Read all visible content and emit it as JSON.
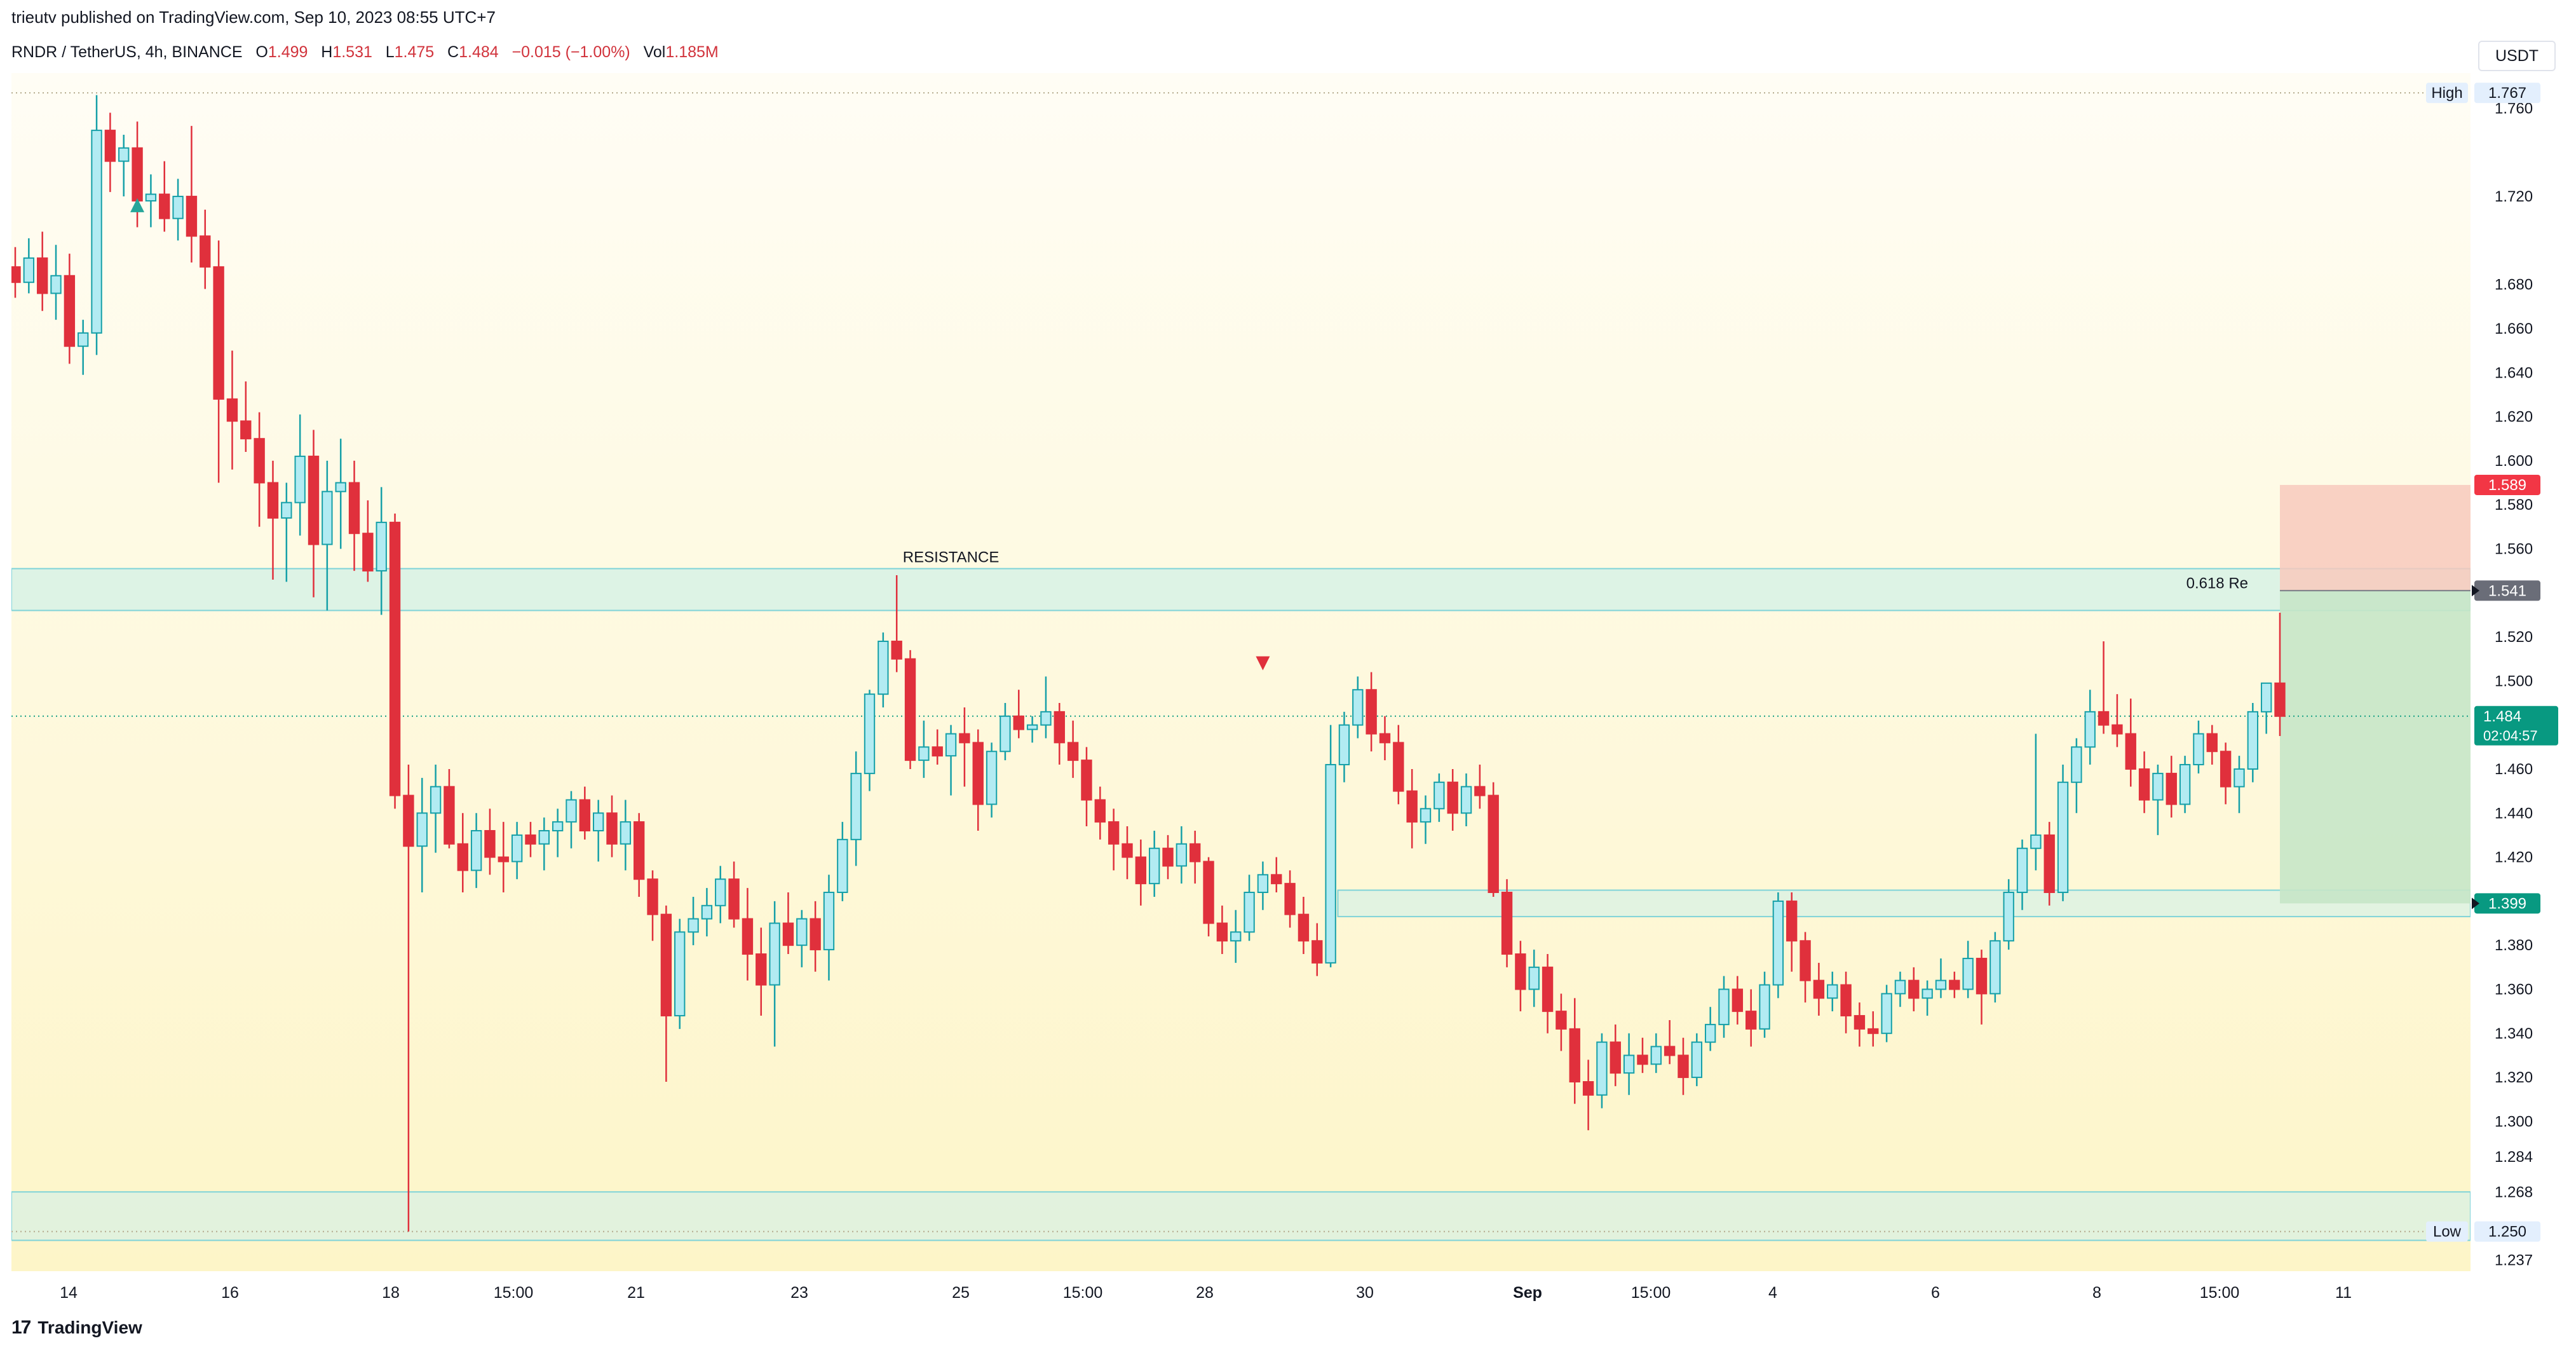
{
  "header": {
    "published_line": "trieutv published on TradingView.com, Sep 10, 2023 08:55 UTC+7"
  },
  "legend": {
    "symbol": "RNDR / TetherUS, 4h, BINANCE",
    "o_label": "O",
    "o_value": "1.499",
    "h_label": "H",
    "h_value": "1.531",
    "l_label": "L",
    "l_value": "1.475",
    "c_label": "C",
    "c_value": "1.484",
    "change": "−0.015 (−1.00%)",
    "vol_label": "Vol",
    "vol_value": "1.185M"
  },
  "currency_button": "USDT",
  "footer": {
    "brand": "TradingView",
    "logo": "17"
  },
  "colors": {
    "up": "#b2ebf2",
    "up_border": "#16a0a8",
    "down": "#e0303c",
    "bg_top": "#fffdf5",
    "bg_bottom": "#fdf5c8",
    "zone": "#d5f1e6",
    "zone_border": "#7fd3d8",
    "stop": "#f8c9bd",
    "target": "#c6e5c8"
  },
  "annotations": {
    "resistance_label": "RESISTANCE",
    "fib_label": "0.618 Re",
    "high_label": "High",
    "high_value": "1.767",
    "low_label": "Low",
    "low_value": "1.250",
    "current_price": "1.484",
    "countdown": "02:04:57",
    "stop_price": "1.589",
    "entry_price": "1.541",
    "target_price": "1.399"
  },
  "chart_data": {
    "type": "candlestick",
    "ylim": [
      1.232,
      1.776
    ],
    "y_ticks": [
      "1.760",
      "1.720",
      "1.680",
      "1.660",
      "1.640",
      "1.620",
      "1.600",
      "1.580",
      "1.560",
      "1.520",
      "1.500",
      "1.460",
      "1.440",
      "1.420",
      "1.380",
      "1.360",
      "1.340",
      "1.320",
      "1.300",
      "1.284",
      "1.268",
      "1.237"
    ],
    "x_labels": [
      "14",
      "16",
      "18",
      "15:00",
      "21",
      "23",
      "25",
      "15:00",
      "28",
      "30",
      "Sep",
      "15:00",
      "4",
      "6",
      "8",
      "15:00",
      "11"
    ],
    "resistance_zone": [
      1.532,
      1.551
    ],
    "support_zone": [
      1.246,
      1.268
    ],
    "demand_zone": [
      1.393,
      1.405
    ],
    "position": {
      "entry": 1.541,
      "stop": 1.589,
      "target": 1.399
    },
    "high_value": 1.767,
    "low_value": 1.25,
    "last_value": 1.484,
    "candles": [
      [
        1.688,
        1.697,
        1.674,
        1.681
      ],
      [
        1.681,
        1.701,
        1.676,
        1.692
      ],
      [
        1.692,
        1.704,
        1.668,
        1.676
      ],
      [
        1.676,
        1.698,
        1.664,
        1.684
      ],
      [
        1.684,
        1.694,
        1.644,
        1.652
      ],
      [
        1.652,
        1.664,
        1.639,
        1.658
      ],
      [
        1.658,
        1.766,
        1.648,
        1.75
      ],
      [
        1.75,
        1.758,
        1.722,
        1.736
      ],
      [
        1.736,
        1.748,
        1.72,
        1.742
      ],
      [
        1.742,
        1.754,
        1.706,
        1.718
      ],
      [
        1.718,
        1.73,
        1.706,
        1.721
      ],
      [
        1.721,
        1.736,
        1.704,
        1.71
      ],
      [
        1.71,
        1.728,
        1.7,
        1.72
      ],
      [
        1.72,
        1.752,
        1.69,
        1.702
      ],
      [
        1.702,
        1.714,
        1.678,
        1.688
      ],
      [
        1.688,
        1.7,
        1.59,
        1.628
      ],
      [
        1.628,
        1.65,
        1.596,
        1.618
      ],
      [
        1.618,
        1.636,
        1.604,
        1.61
      ],
      [
        1.61,
        1.622,
        1.57,
        1.59
      ],
      [
        1.59,
        1.6,
        1.546,
        1.574
      ],
      [
        1.574,
        1.59,
        1.545,
        1.581
      ],
      [
        1.581,
        1.621,
        1.566,
        1.602
      ],
      [
        1.602,
        1.614,
        1.538,
        1.562
      ],
      [
        1.562,
        1.6,
        1.532,
        1.586
      ],
      [
        1.586,
        1.61,
        1.56,
        1.59
      ],
      [
        1.59,
        1.6,
        1.55,
        1.567
      ],
      [
        1.567,
        1.582,
        1.545,
        1.55
      ],
      [
        1.55,
        1.588,
        1.53,
        1.572
      ],
      [
        1.572,
        1.576,
        1.442,
        1.448
      ],
      [
        1.448,
        1.462,
        1.25,
        1.425
      ],
      [
        1.425,
        1.456,
        1.404,
        1.44
      ],
      [
        1.44,
        1.462,
        1.422,
        1.452
      ],
      [
        1.452,
        1.46,
        1.424,
        1.426
      ],
      [
        1.426,
        1.44,
        1.404,
        1.414
      ],
      [
        1.414,
        1.44,
        1.406,
        1.432
      ],
      [
        1.432,
        1.442,
        1.412,
        1.42
      ],
      [
        1.42,
        1.436,
        1.404,
        1.418
      ],
      [
        1.418,
        1.436,
        1.41,
        1.43
      ],
      [
        1.43,
        1.436,
        1.42,
        1.426
      ],
      [
        1.426,
        1.438,
        1.414,
        1.432
      ],
      [
        1.432,
        1.442,
        1.42,
        1.436
      ],
      [
        1.436,
        1.45,
        1.424,
        1.446
      ],
      [
        1.446,
        1.452,
        1.428,
        1.432
      ],
      [
        1.432,
        1.446,
        1.418,
        1.44
      ],
      [
        1.44,
        1.448,
        1.42,
        1.426
      ],
      [
        1.426,
        1.446,
        1.414,
        1.436
      ],
      [
        1.436,
        1.44,
        1.402,
        1.41
      ],
      [
        1.41,
        1.414,
        1.382,
        1.394
      ],
      [
        1.394,
        1.398,
        1.318,
        1.348
      ],
      [
        1.348,
        1.392,
        1.342,
        1.386
      ],
      [
        1.386,
        1.402,
        1.38,
        1.392
      ],
      [
        1.392,
        1.406,
        1.384,
        1.398
      ],
      [
        1.398,
        1.416,
        1.39,
        1.41
      ],
      [
        1.41,
        1.418,
        1.388,
        1.392
      ],
      [
        1.392,
        1.406,
        1.364,
        1.376
      ],
      [
        1.376,
        1.388,
        1.348,
        1.362
      ],
      [
        1.362,
        1.4,
        1.334,
        1.39
      ],
      [
        1.39,
        1.404,
        1.376,
        1.38
      ],
      [
        1.38,
        1.396,
        1.37,
        1.392
      ],
      [
        1.392,
        1.4,
        1.368,
        1.378
      ],
      [
        1.378,
        1.412,
        1.364,
        1.404
      ],
      [
        1.404,
        1.436,
        1.4,
        1.428
      ],
      [
        1.428,
        1.468,
        1.416,
        1.458
      ],
      [
        1.458,
        1.496,
        1.45,
        1.494
      ],
      [
        1.494,
        1.522,
        1.488,
        1.518
      ],
      [
        1.518,
        1.548,
        1.504,
        1.51
      ],
      [
        1.51,
        1.514,
        1.46,
        1.464
      ],
      [
        1.464,
        1.482,
        1.456,
        1.47
      ],
      [
        1.47,
        1.478,
        1.462,
        1.466
      ],
      [
        1.466,
        1.48,
        1.448,
        1.476
      ],
      [
        1.476,
        1.488,
        1.452,
        1.472
      ],
      [
        1.472,
        1.478,
        1.432,
        1.444
      ],
      [
        1.444,
        1.472,
        1.438,
        1.468
      ],
      [
        1.468,
        1.49,
        1.464,
        1.484
      ],
      [
        1.484,
        1.496,
        1.474,
        1.478
      ],
      [
        1.478,
        1.484,
        1.472,
        1.48
      ],
      [
        1.48,
        1.502,
        1.474,
        1.486
      ],
      [
        1.486,
        1.49,
        1.462,
        1.472
      ],
      [
        1.472,
        1.482,
        1.456,
        1.464
      ],
      [
        1.464,
        1.47,
        1.434,
        1.446
      ],
      [
        1.446,
        1.452,
        1.428,
        1.436
      ],
      [
        1.436,
        1.442,
        1.414,
        1.426
      ],
      [
        1.426,
        1.434,
        1.41,
        1.42
      ],
      [
        1.42,
        1.428,
        1.398,
        1.408
      ],
      [
        1.408,
        1.432,
        1.402,
        1.424
      ],
      [
        1.424,
        1.43,
        1.41,
        1.416
      ],
      [
        1.416,
        1.434,
        1.408,
        1.426
      ],
      [
        1.426,
        1.432,
        1.408,
        1.418
      ],
      [
        1.418,
        1.42,
        1.384,
        1.39
      ],
      [
        1.39,
        1.398,
        1.376,
        1.382
      ],
      [
        1.382,
        1.396,
        1.372,
        1.386
      ],
      [
        1.386,
        1.412,
        1.382,
        1.404
      ],
      [
        1.404,
        1.418,
        1.396,
        1.412
      ],
      [
        1.412,
        1.42,
        1.404,
        1.408
      ],
      [
        1.408,
        1.414,
        1.388,
        1.394
      ],
      [
        1.394,
        1.402,
        1.376,
        1.382
      ],
      [
        1.382,
        1.39,
        1.366,
        1.372
      ],
      [
        1.372,
        1.48,
        1.37,
        1.462
      ],
      [
        1.462,
        1.486,
        1.454,
        1.48
      ],
      [
        1.48,
        1.502,
        1.474,
        1.496
      ],
      [
        1.496,
        1.504,
        1.468,
        1.476
      ],
      [
        1.476,
        1.484,
        1.464,
        1.472
      ],
      [
        1.472,
        1.48,
        1.444,
        1.45
      ],
      [
        1.45,
        1.46,
        1.424,
        1.436
      ],
      [
        1.436,
        1.448,
        1.426,
        1.442
      ],
      [
        1.442,
        1.458,
        1.436,
        1.454
      ],
      [
        1.454,
        1.46,
        1.432,
        1.44
      ],
      [
        1.44,
        1.458,
        1.434,
        1.452
      ],
      [
        1.452,
        1.462,
        1.442,
        1.448
      ],
      [
        1.448,
        1.454,
        1.402,
        1.404
      ],
      [
        1.404,
        1.41,
        1.37,
        1.376
      ],
      [
        1.376,
        1.382,
        1.35,
        1.36
      ],
      [
        1.36,
        1.378,
        1.352,
        1.37
      ],
      [
        1.37,
        1.376,
        1.34,
        1.35
      ],
      [
        1.35,
        1.358,
        1.332,
        1.342
      ],
      [
        1.342,
        1.356,
        1.308,
        1.318
      ],
      [
        1.318,
        1.328,
        1.296,
        1.312
      ],
      [
        1.312,
        1.34,
        1.306,
        1.336
      ],
      [
        1.336,
        1.344,
        1.316,
        1.322
      ],
      [
        1.322,
        1.34,
        1.312,
        1.33
      ],
      [
        1.33,
        1.338,
        1.322,
        1.326
      ],
      [
        1.326,
        1.34,
        1.322,
        1.334
      ],
      [
        1.334,
        1.346,
        1.326,
        1.33
      ],
      [
        1.33,
        1.338,
        1.312,
        1.32
      ],
      [
        1.32,
        1.34,
        1.316,
        1.336
      ],
      [
        1.336,
        1.352,
        1.332,
        1.344
      ],
      [
        1.344,
        1.366,
        1.338,
        1.36
      ],
      [
        1.36,
        1.366,
        1.344,
        1.35
      ],
      [
        1.35,
        1.36,
        1.334,
        1.342
      ],
      [
        1.342,
        1.368,
        1.338,
        1.362
      ],
      [
        1.362,
        1.404,
        1.356,
        1.4
      ],
      [
        1.4,
        1.404,
        1.368,
        1.382
      ],
      [
        1.382,
        1.386,
        1.354,
        1.364
      ],
      [
        1.364,
        1.372,
        1.348,
        1.356
      ],
      [
        1.356,
        1.368,
        1.35,
        1.362
      ],
      [
        1.362,
        1.368,
        1.34,
        1.348
      ],
      [
        1.348,
        1.354,
        1.334,
        1.342
      ],
      [
        1.342,
        1.35,
        1.334,
        1.34
      ],
      [
        1.34,
        1.362,
        1.336,
        1.358
      ],
      [
        1.358,
        1.368,
        1.352,
        1.364
      ],
      [
        1.364,
        1.37,
        1.35,
        1.356
      ],
      [
        1.356,
        1.364,
        1.348,
        1.36
      ],
      [
        1.36,
        1.374,
        1.356,
        1.364
      ],
      [
        1.364,
        1.368,
        1.356,
        1.36
      ],
      [
        1.36,
        1.382,
        1.356,
        1.374
      ],
      [
        1.374,
        1.378,
        1.344,
        1.358
      ],
      [
        1.358,
        1.386,
        1.354,
        1.382
      ],
      [
        1.382,
        1.41,
        1.378,
        1.404
      ],
      [
        1.404,
        1.428,
        1.396,
        1.424
      ],
      [
        1.424,
        1.476,
        1.414,
        1.43
      ],
      [
        1.43,
        1.436,
        1.398,
        1.404
      ],
      [
        1.404,
        1.462,
        1.4,
        1.454
      ],
      [
        1.454,
        1.474,
        1.44,
        1.47
      ],
      [
        1.47,
        1.496,
        1.462,
        1.486
      ],
      [
        1.486,
        1.518,
        1.476,
        1.48
      ],
      [
        1.48,
        1.494,
        1.47,
        1.476
      ],
      [
        1.476,
        1.492,
        1.452,
        1.46
      ],
      [
        1.46,
        1.468,
        1.44,
        1.446
      ],
      [
        1.446,
        1.462,
        1.43,
        1.458
      ],
      [
        1.458,
        1.466,
        1.438,
        1.444
      ],
      [
        1.444,
        1.466,
        1.44,
        1.462
      ],
      [
        1.462,
        1.482,
        1.458,
        1.476
      ],
      [
        1.476,
        1.48,
        1.462,
        1.468
      ],
      [
        1.468,
        1.472,
        1.444,
        1.452
      ],
      [
        1.452,
        1.466,
        1.44,
        1.46
      ],
      [
        1.46,
        1.49,
        1.454,
        1.486
      ],
      [
        1.486,
        1.498,
        1.476,
        1.499
      ],
      [
        1.499,
        1.531,
        1.475,
        1.484
      ]
    ]
  }
}
